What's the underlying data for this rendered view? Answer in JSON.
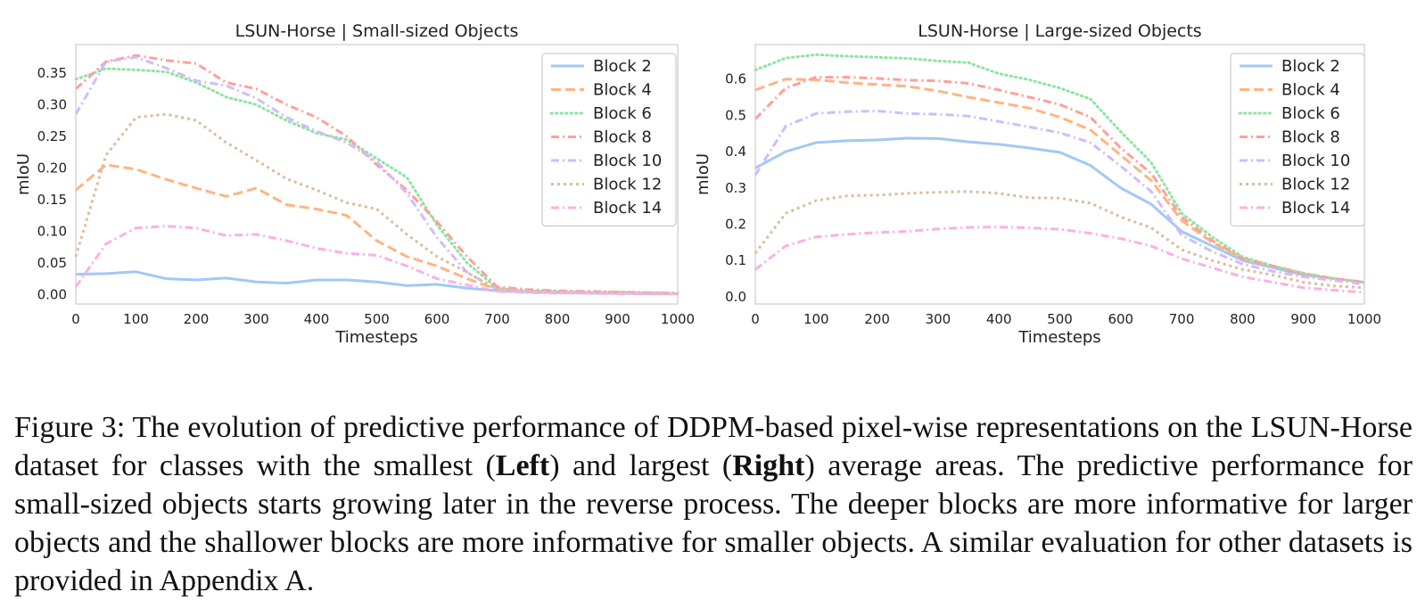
{
  "chart_data": [
    {
      "type": "line",
      "title": "LSUN-Horse | Small-sized Objects",
      "xlabel": "Timesteps",
      "ylabel": "mIoU",
      "xlim": [
        0,
        1000
      ],
      "ylim": [
        -0.015,
        0.395
      ],
      "xticks": [
        0,
        100,
        200,
        300,
        400,
        500,
        600,
        700,
        800,
        900,
        1000
      ],
      "yticks": [
        0.0,
        0.05,
        0.1,
        0.15,
        0.2,
        0.25,
        0.3,
        0.35
      ],
      "ytick_labels": [
        "0.00",
        "0.05",
        "0.10",
        "0.15",
        "0.20",
        "0.25",
        "0.30",
        "0.35"
      ],
      "grid": false,
      "legend": "top-right",
      "x": [
        0,
        50,
        100,
        150,
        200,
        250,
        300,
        350,
        400,
        450,
        500,
        550,
        600,
        650,
        700,
        750,
        800,
        850,
        900,
        950,
        1000
      ],
      "series": [
        {
          "name": "Block 2",
          "values": [
            0.032,
            0.033,
            0.036,
            0.025,
            0.023,
            0.026,
            0.02,
            0.018,
            0.023,
            0.023,
            0.02,
            0.014,
            0.016,
            0.01,
            0.006,
            0.004,
            0.003,
            0.002,
            0.002,
            0.001,
            0.001
          ]
        },
        {
          "name": "Block 4",
          "values": [
            0.165,
            0.205,
            0.198,
            0.182,
            0.168,
            0.155,
            0.168,
            0.142,
            0.135,
            0.125,
            0.085,
            0.06,
            0.045,
            0.025,
            0.008,
            0.005,
            0.004,
            0.003,
            0.002,
            0.002,
            0.001
          ]
        },
        {
          "name": "Block 6",
          "values": [
            0.34,
            0.357,
            0.355,
            0.352,
            0.335,
            0.312,
            0.3,
            0.275,
            0.255,
            0.245,
            0.215,
            0.185,
            0.11,
            0.05,
            0.01,
            0.006,
            0.005,
            0.004,
            0.004,
            0.003,
            0.002
          ]
        },
        {
          "name": "Block 8",
          "values": [
            0.325,
            0.368,
            0.378,
            0.37,
            0.365,
            0.335,
            0.325,
            0.3,
            0.28,
            0.25,
            0.205,
            0.165,
            0.115,
            0.06,
            0.012,
            0.008,
            0.006,
            0.005,
            0.004,
            0.003,
            0.002
          ]
        },
        {
          "name": "Block 10",
          "values": [
            0.285,
            0.368,
            0.375,
            0.358,
            0.338,
            0.33,
            0.31,
            0.28,
            0.258,
            0.24,
            0.21,
            0.16,
            0.09,
            0.035,
            0.008,
            0.005,
            0.004,
            0.003,
            0.002,
            0.002,
            0.001
          ]
        },
        {
          "name": "Block 12",
          "values": [
            0.06,
            0.22,
            0.28,
            0.285,
            0.275,
            0.24,
            0.212,
            0.183,
            0.165,
            0.145,
            0.135,
            0.095,
            0.06,
            0.035,
            0.008,
            0.005,
            0.004,
            0.003,
            0.003,
            0.002,
            0.001
          ]
        },
        {
          "name": "Block 14",
          "values": [
            0.012,
            0.08,
            0.105,
            0.108,
            0.105,
            0.093,
            0.095,
            0.085,
            0.073,
            0.065,
            0.062,
            0.045,
            0.025,
            0.015,
            0.005,
            0.003,
            0.002,
            0.002,
            0.001,
            0.001,
            0.001
          ]
        }
      ]
    },
    {
      "type": "line",
      "title": "LSUN-Horse | Large-sized Objects",
      "xlabel": "Timesteps",
      "ylabel": "mIoU",
      "xlim": [
        0,
        1000
      ],
      "ylim": [
        -0.02,
        0.695
      ],
      "xticks": [
        0,
        100,
        200,
        300,
        400,
        500,
        600,
        700,
        800,
        900,
        1000
      ],
      "yticks": [
        0.0,
        0.1,
        0.2,
        0.3,
        0.4,
        0.5,
        0.6
      ],
      "ytick_labels": [
        "0.0",
        "0.1",
        "0.2",
        "0.3",
        "0.4",
        "0.5",
        "0.6"
      ],
      "grid": false,
      "legend": "top-right",
      "x": [
        0,
        50,
        100,
        150,
        200,
        250,
        300,
        350,
        400,
        450,
        500,
        550,
        600,
        650,
        700,
        750,
        800,
        850,
        900,
        950,
        1000
      ],
      "series": [
        {
          "name": "Block 2",
          "values": [
            0.355,
            0.4,
            0.425,
            0.43,
            0.432,
            0.437,
            0.436,
            0.427,
            0.42,
            0.41,
            0.398,
            0.362,
            0.3,
            0.255,
            0.18,
            0.14,
            0.1,
            0.08,
            0.06,
            0.05,
            0.04
          ]
        },
        {
          "name": "Block 4",
          "values": [
            0.57,
            0.6,
            0.598,
            0.59,
            0.585,
            0.58,
            0.567,
            0.55,
            0.535,
            0.52,
            0.495,
            0.46,
            0.39,
            0.32,
            0.21,
            0.15,
            0.105,
            0.085,
            0.065,
            0.05,
            0.04
          ]
        },
        {
          "name": "Block 6",
          "values": [
            0.625,
            0.658,
            0.667,
            0.663,
            0.66,
            0.657,
            0.65,
            0.645,
            0.615,
            0.598,
            0.575,
            0.545,
            0.455,
            0.37,
            0.23,
            0.165,
            0.11,
            0.085,
            0.065,
            0.05,
            0.04
          ]
        },
        {
          "name": "Block 8",
          "values": [
            0.49,
            0.575,
            0.605,
            0.605,
            0.602,
            0.597,
            0.595,
            0.588,
            0.57,
            0.55,
            0.53,
            0.495,
            0.41,
            0.34,
            0.22,
            0.155,
            0.105,
            0.085,
            0.06,
            0.05,
            0.04
          ]
        },
        {
          "name": "Block 10",
          "values": [
            0.335,
            0.47,
            0.505,
            0.51,
            0.512,
            0.505,
            0.503,
            0.498,
            0.483,
            0.468,
            0.452,
            0.425,
            0.36,
            0.29,
            0.17,
            0.125,
            0.09,
            0.07,
            0.055,
            0.045,
            0.035
          ]
        },
        {
          "name": "Block 12",
          "values": [
            0.12,
            0.23,
            0.265,
            0.278,
            0.28,
            0.285,
            0.288,
            0.29,
            0.285,
            0.273,
            0.272,
            0.258,
            0.22,
            0.19,
            0.13,
            0.1,
            0.075,
            0.06,
            0.04,
            0.03,
            0.025
          ]
        },
        {
          "name": "Block 14",
          "values": [
            0.075,
            0.14,
            0.165,
            0.172,
            0.177,
            0.18,
            0.187,
            0.191,
            0.192,
            0.19,
            0.186,
            0.175,
            0.16,
            0.14,
            0.105,
            0.08,
            0.055,
            0.04,
            0.025,
            0.018,
            0.012
          ]
        }
      ]
    }
  ],
  "caption": {
    "label": "Figure 3:",
    "text_1": " The evolution of predictive performance of DDPM-based pixel-wise representations on the LSUN-Horse dataset for classes with the smallest (",
    "bold_1": "Left",
    "text_2": ") and largest (",
    "bold_2": "Right",
    "text_3": ") average areas. The predictive performance for small-sized objects starts growing later in the reverse process. The deeper blocks are more informative for larger objects and the shallower blocks are more informative for smaller objects. A similar evaluation for other datasets is provided in Appendix A."
  },
  "colors": {
    "Block 2": "#a1c9f4",
    "Block 4": "#ffb482",
    "Block 6": "#8de5a1",
    "Block 8": "#ff9f9b",
    "Block 10": "#d0bbff",
    "Block 12": "#debb9b",
    "Block 14": "#fab0e4",
    "axes": "#cccccc"
  }
}
